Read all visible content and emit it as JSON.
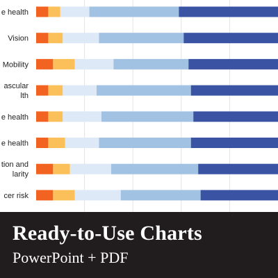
{
  "colors": {
    "seg1": "#f26322",
    "seg2": "#fcc05a",
    "seg3": "#dde9f6",
    "seg4": "#a2c2e4",
    "seg5": "#3a54a3",
    "grid": "#e4e4e4",
    "banner_bg": "#211c1e",
    "banner_text": "#ffffff"
  },
  "chart_data": {
    "type": "bar",
    "orientation": "horizontal",
    "stacked": true,
    "categories": [
      [
        "e health"
      ],
      [
        "Vision"
      ],
      [
        "Mobility"
      ],
      [
        "ascular",
        "lth"
      ],
      [
        "e health"
      ],
      [
        "e health"
      ],
      [
        "tion and",
        "larity"
      ],
      [
        "cer risk"
      ]
    ],
    "series": [
      {
        "color": "#f26322",
        "values": [
          5,
          5,
          7,
          5,
          5,
          5,
          7,
          7
        ]
      },
      {
        "color": "#fcc05a",
        "values": [
          5,
          6,
          9,
          6,
          6,
          7,
          7,
          9
        ]
      },
      {
        "color": "#dde9f6",
        "values": [
          12,
          15,
          16,
          14,
          16,
          14,
          17,
          19
        ]
      },
      {
        "color": "#a2c2e4",
        "values": [
          37,
          35,
          31,
          39,
          38,
          38,
          36,
          33
        ]
      },
      {
        "color": "#3a54a3",
        "values": [
          41,
          39,
          37,
          36,
          35,
          36,
          33,
          32
        ]
      }
    ],
    "xlim": [
      0,
      100
    ],
    "grid": true,
    "legend": "none"
  },
  "banner": {
    "title": "Ready-to-Use Charts",
    "subtitle": "PowerPoint + PDF"
  }
}
